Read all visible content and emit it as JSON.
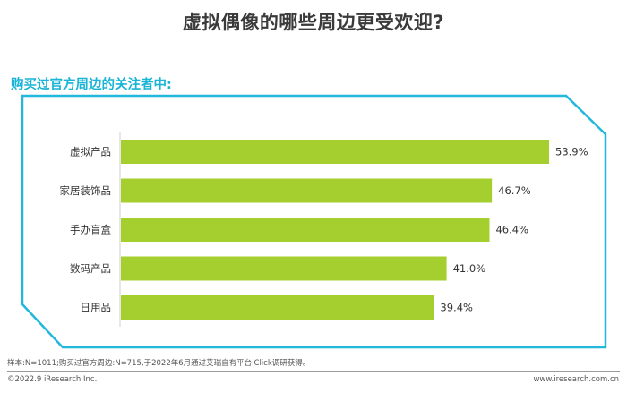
{
  "title": "虚拟偶像的哪些周边更受欢迎?",
  "subtitle": "购买过官方周边的关注者中:",
  "note": "样本:N=1011;购买过官方周边:N=715,于2022年6月通过艾瑞自有平台iClick调研获得。",
  "footer": {
    "copyright": "©2022.9 iResearch Inc.",
    "website": "www.iresearch.com.cn"
  },
  "colors": {
    "bar": "#a5cf2e",
    "frame": "#22b8dc",
    "subtitle": "#19b4d6"
  },
  "chart_data": {
    "type": "bar",
    "orientation": "horizontal",
    "categories": [
      "虚拟产品",
      "家居装饰品",
      "手办盲盒",
      "数码产品",
      "日用品"
    ],
    "values": [
      53.9,
      46.7,
      46.4,
      41.0,
      39.4
    ],
    "labels": [
      "53.9%",
      "46.7%",
      "46.4%",
      "41.0%",
      "39.4%"
    ],
    "unit": "%",
    "xlim": [
      0,
      60
    ],
    "grid": false,
    "legend": "none"
  }
}
